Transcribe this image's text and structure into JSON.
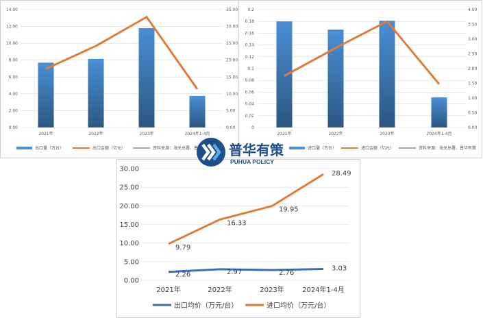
{
  "logo": {
    "cn": "普华有策",
    "en": "PUHUA POLICY"
  },
  "colors": {
    "bar": "#4a8fd6",
    "bar_dark": "#2d5782",
    "orange": "#e07b39",
    "blue_line": "#3f6cb8",
    "gray": "#a6a6a6",
    "grid": "#d9d9d9"
  },
  "chart_data": [
    {
      "type": "bar",
      "categories": [
        "2021年",
        "2022年",
        "2023年",
        "2024年1-4月"
      ],
      "series": [
        {
          "name": "出口量（万台）",
          "type": "bar",
          "axis": "left",
          "values": [
            7.7,
            8.15,
            11.8,
            3.75
          ]
        },
        {
          "name": "出口金额（亿元）",
          "type": "line",
          "axis": "right",
          "values": [
            17.4,
            24.2,
            32.8,
            11.4
          ]
        }
      ],
      "legend_extra": "资料来源：海关总署、普华有策",
      "yticks_left": [
        "0.00",
        "2.00",
        "4.00",
        "6.00",
        "8.00",
        "10.00",
        "12.00",
        "14.00"
      ],
      "yticks_right": [
        "0.00",
        "5.00",
        "10.00",
        "15.00",
        "20.00",
        "25.00",
        "30.00",
        "35.00"
      ],
      "ylim_left": [
        0,
        14
      ],
      "ylim_right": [
        0,
        35
      ],
      "grid": true,
      "legend": "bottom"
    },
    {
      "type": "bar",
      "categories": [
        "2021年",
        "2022年",
        "2023年",
        "2024年1-4月"
      ],
      "series": [
        {
          "name": "进口量（万台）",
          "type": "bar",
          "axis": "left",
          "values": [
            0.18,
            0.166,
            0.181,
            0.051
          ]
        },
        {
          "name": "进口金额（亿元）",
          "type": "line",
          "axis": "right",
          "values": [
            1.75,
            2.7,
            3.6,
            1.47
          ]
        }
      ],
      "legend_extra": "资料来源：海关总署、普华有策",
      "yticks_left": [
        "0",
        "0.02",
        "0.04",
        "0.06",
        "0.08",
        "0.1",
        "0.12",
        "0.14",
        "0.16",
        "0.18",
        "0.2"
      ],
      "yticks_right": [
        "0.00",
        "0.50",
        "1.00",
        "1.50",
        "2.00",
        "2.50",
        "3.00",
        "3.50",
        "4.00"
      ],
      "ylim_left": [
        0,
        0.2
      ],
      "ylim_right": [
        0,
        4
      ],
      "grid": true,
      "legend": "bottom"
    },
    {
      "type": "line",
      "categories": [
        "2021年",
        "2022年",
        "2023年",
        "2024年1-4月"
      ],
      "series": [
        {
          "name": "出口均价（万元/台）",
          "values": [
            2.26,
            2.97,
            2.76,
            3.03
          ],
          "labels": [
            "2.26",
            "2.97",
            "2.76",
            "3.03"
          ]
        },
        {
          "name": "进口均价（万元/台）",
          "values": [
            9.79,
            16.33,
            19.95,
            28.49
          ],
          "labels": [
            "9.79",
            "16.33",
            "19.95",
            "28.49"
          ]
        }
      ],
      "yticks": [
        "0.00",
        "5.00",
        "10.00",
        "15.00",
        "20.00",
        "25.00",
        "30.00"
      ],
      "ylim": [
        0,
        30
      ],
      "grid": true,
      "legend": "bottom"
    }
  ]
}
